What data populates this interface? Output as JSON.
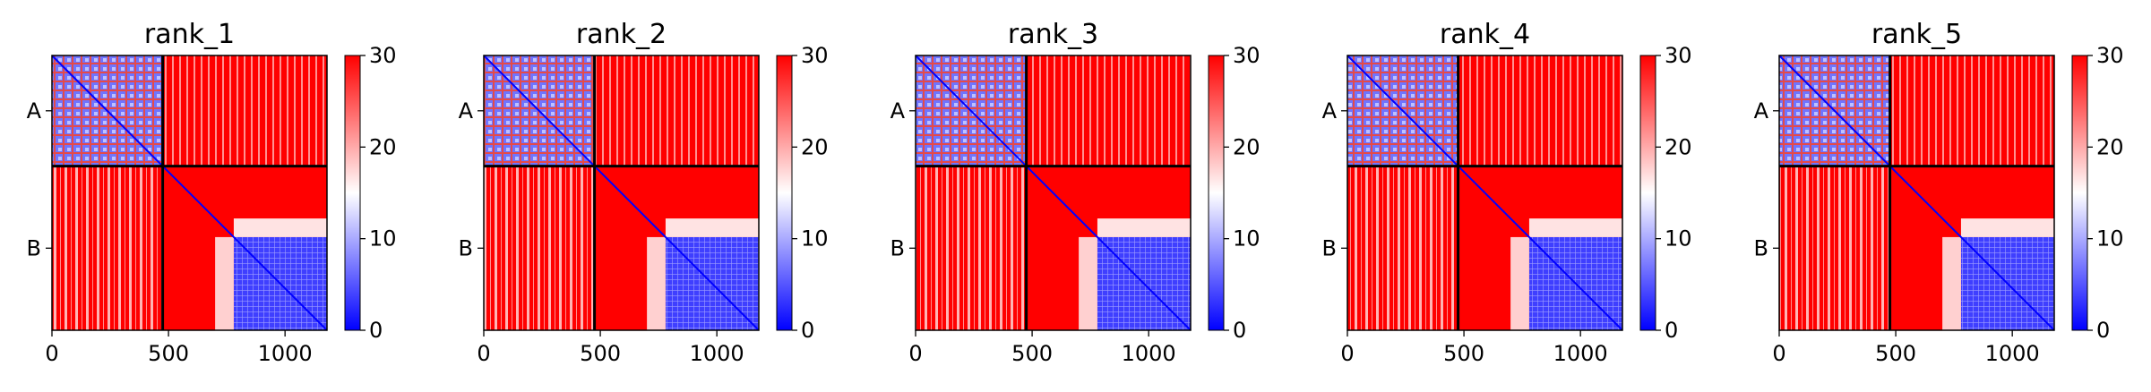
{
  "chart_data": {
    "type": "heatmap",
    "colormap": "bwr",
    "colorbar_ticks": [
      0,
      10,
      20,
      30
    ],
    "vmin": 0,
    "vmax": 30,
    "xticks": [
      0,
      500,
      1000
    ],
    "xlim": [
      0,
      1180
    ],
    "ylim": [
      1180,
      0
    ],
    "chains": [
      {
        "label": "A",
        "start": 0,
        "end": 475
      },
      {
        "label": "B",
        "start": 475,
        "end": 1180
      }
    ],
    "panels": [
      {
        "title": "rank_1"
      },
      {
        "title": "rank_2"
      },
      {
        "title": "rank_3"
      },
      {
        "title": "rank_4"
      },
      {
        "title": "rank_5"
      }
    ],
    "pattern_description_values": {
      "inter_chain_error": 30,
      "diagonal_error": 0,
      "chain_B_domain_start": 700,
      "chain_B_domain_core_start": 780
    }
  }
}
